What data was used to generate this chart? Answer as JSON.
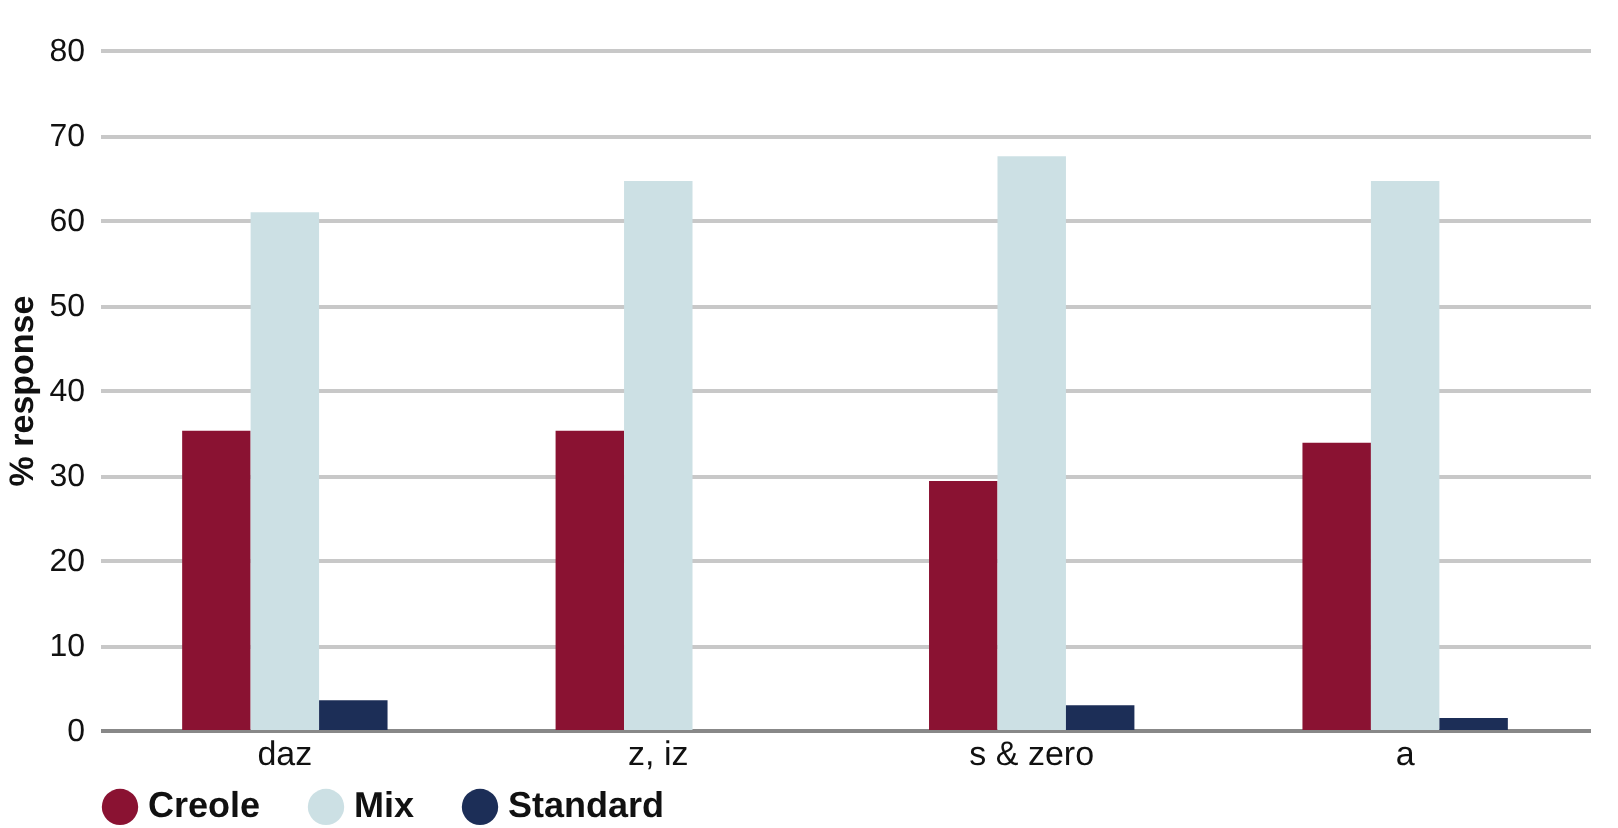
{
  "chart_data": {
    "type": "bar",
    "ylabel": "% response",
    "categories": [
      "daz",
      "z, iz",
      "s & zero",
      "a"
    ],
    "series": [
      {
        "name": "Creole",
        "color": "#8a1232",
        "values": [
          35.2,
          35.2,
          29.3,
          33.8
        ]
      },
      {
        "name": "Mix",
        "color": "#cce0e4",
        "values": [
          60.9,
          64.6,
          67.5,
          64.6
        ]
      },
      {
        "name": "Standard",
        "color": "#1c2e57",
        "values": [
          3.5,
          0,
          2.9,
          1.4
        ]
      }
    ],
    "ylim": [
      0,
      80
    ],
    "yticks": [
      0,
      10,
      20,
      30,
      40,
      50,
      60,
      70,
      80
    ],
    "grid": "y",
    "legend": "bottom"
  }
}
